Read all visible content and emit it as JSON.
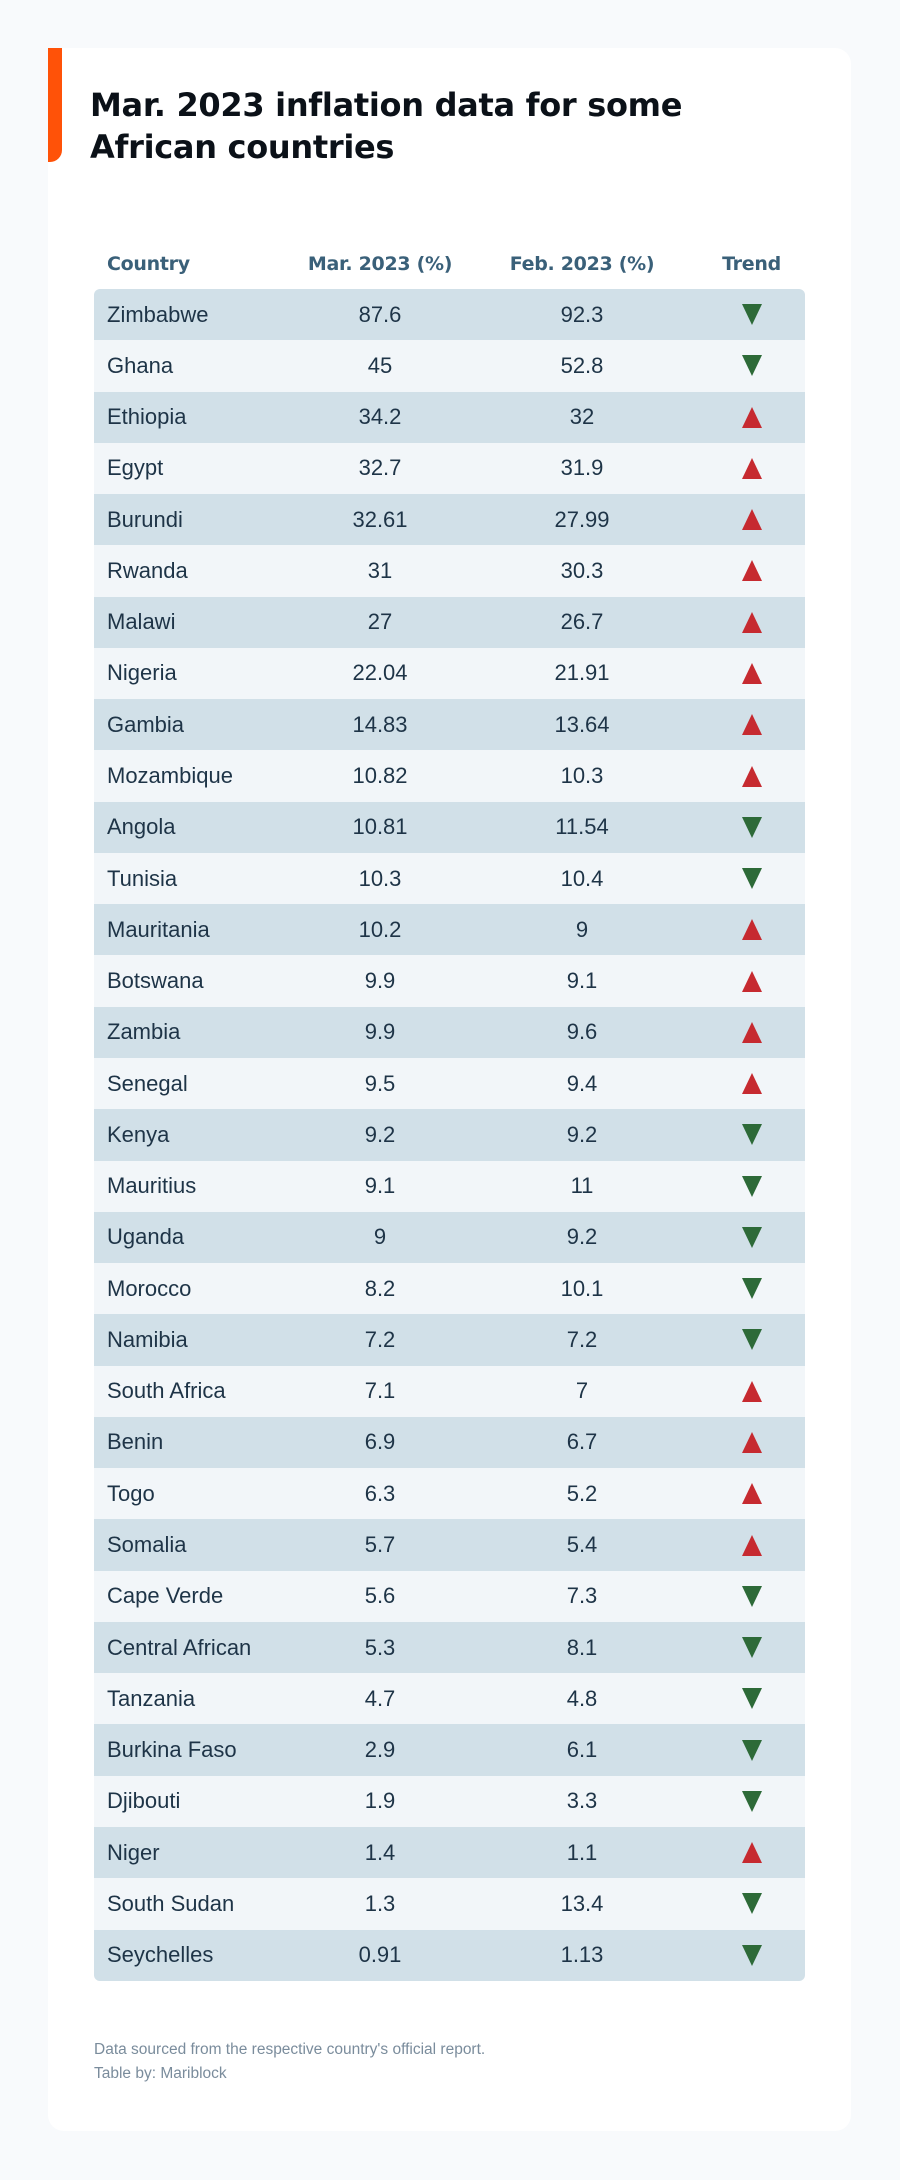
{
  "title": "Mar. 2023 inflation data for some African countries",
  "colors": {
    "accent": "#ff5208",
    "trend_up": "#c62a30",
    "trend_down": "#2d6a38",
    "header_text": "#3a6079",
    "row_dark": "#d1e0e8",
    "row_light": "#f2f6f9"
  },
  "table": {
    "headers": [
      "Country",
      "Mar. 2023 (%)",
      "Feb. 2023 (%)",
      "Trend"
    ],
    "rows": [
      {
        "country": "Zimbabwe",
        "mar": "87.6",
        "feb": "92.3",
        "trend": "down"
      },
      {
        "country": "Ghana",
        "mar": "45",
        "feb": "52.8",
        "trend": "down"
      },
      {
        "country": "Ethiopia",
        "mar": "34.2",
        "feb": "32",
        "trend": "up"
      },
      {
        "country": "Egypt",
        "mar": "32.7",
        "feb": "31.9",
        "trend": "up"
      },
      {
        "country": "Burundi",
        "mar": "32.61",
        "feb": "27.99",
        "trend": "up"
      },
      {
        "country": "Rwanda",
        "mar": "31",
        "feb": "30.3",
        "trend": "up"
      },
      {
        "country": "Malawi",
        "mar": "27",
        "feb": "26.7",
        "trend": "up"
      },
      {
        "country": "Nigeria",
        "mar": "22.04",
        "feb": "21.91",
        "trend": "up"
      },
      {
        "country": "Gambia",
        "mar": "14.83",
        "feb": "13.64",
        "trend": "up"
      },
      {
        "country": "Mozambique",
        "mar": "10.82",
        "feb": "10.3",
        "trend": "up"
      },
      {
        "country": "Angola",
        "mar": "10.81",
        "feb": "11.54",
        "trend": "down"
      },
      {
        "country": "Tunisia",
        "mar": "10.3",
        "feb": "10.4",
        "trend": "down"
      },
      {
        "country": "Mauritania",
        "mar": "10.2",
        "feb": "9",
        "trend": "up"
      },
      {
        "country": "Botswana",
        "mar": "9.9",
        "feb": "9.1",
        "trend": "up"
      },
      {
        "country": "Zambia",
        "mar": "9.9",
        "feb": "9.6",
        "trend": "up"
      },
      {
        "country": "Senegal",
        "mar": "9.5",
        "feb": "9.4",
        "trend": "up"
      },
      {
        "country": "Kenya",
        "mar": "9.2",
        "feb": "9.2",
        "trend": "down"
      },
      {
        "country": "Mauritius",
        "mar": "9.1",
        "feb": "11",
        "trend": "down"
      },
      {
        "country": "Uganda",
        "mar": "9",
        "feb": "9.2",
        "trend": "down"
      },
      {
        "country": "Morocco",
        "mar": "8.2",
        "feb": "10.1",
        "trend": "down"
      },
      {
        "country": "Namibia",
        "mar": "7.2",
        "feb": "7.2",
        "trend": "down"
      },
      {
        "country": "South Africa",
        "mar": "7.1",
        "feb": "7",
        "trend": "up"
      },
      {
        "country": "Benin",
        "mar": "6.9",
        "feb": "6.7",
        "trend": "up"
      },
      {
        "country": "Togo",
        "mar": "6.3",
        "feb": "5.2",
        "trend": "up"
      },
      {
        "country": "Somalia",
        "mar": "5.7",
        "feb": "5.4",
        "trend": "up"
      },
      {
        "country": "Cape Verde",
        "mar": "5.6",
        "feb": "7.3",
        "trend": "down"
      },
      {
        "country": "Central African",
        "mar": "5.3",
        "feb": "8.1",
        "trend": "down"
      },
      {
        "country": "Tanzania",
        "mar": "4.7",
        "feb": "4.8",
        "trend": "down"
      },
      {
        "country": "Burkina Faso",
        "mar": "2.9",
        "feb": "6.1",
        "trend": "down"
      },
      {
        "country": "Djibouti",
        "mar": "1.9",
        "feb": "3.3",
        "trend": "down"
      },
      {
        "country": "Niger",
        "mar": "1.4",
        "feb": "1.1",
        "trend": "up"
      },
      {
        "country": "South Sudan",
        "mar": "1.3",
        "feb": "13.4",
        "trend": "down"
      },
      {
        "country": "Seychelles",
        "mar": "0.91",
        "feb": "1.13",
        "trend": "down"
      }
    ]
  },
  "footer": {
    "source": "Data sourced from the respective country's official report.",
    "credit": "Table by: Mariblock"
  }
}
